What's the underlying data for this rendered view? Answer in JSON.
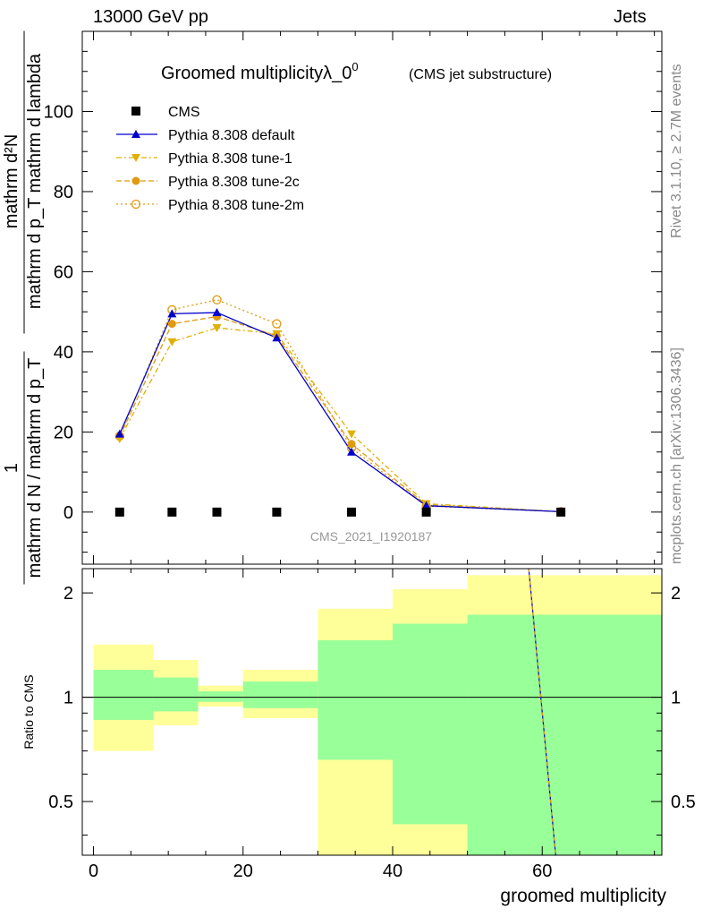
{
  "header": {
    "left": "13000 GeV pp",
    "right": "Jets"
  },
  "side_labels": {
    "top": "Rivet 3.1.10, ≥ 2.7M events",
    "bottom": "mcplots.cern.ch [arXiv:1306.3436]"
  },
  "chart_data": {
    "type": "line",
    "title": "Groomed multiplicityλ_0",
    "title_sup": "0",
    "subtitle": "(CMS jet substructure)",
    "watermark": "CMS_2021_I1920187",
    "xlabel": "groomed multiplicity",
    "ylabel_top": {
      "numerator": "mathrm d²N",
      "denominator": "mathrm d p_T mathrm d lambda",
      "pre": "1",
      "pre_den": "mathrm d N / mathrm d p_T"
    },
    "ylabel_ratio": "Ratio to CMS",
    "xlim": [
      -1.5,
      76
    ],
    "ylim": [
      -13,
      120
    ],
    "ratio_ylim": [
      0.35,
      2.35
    ],
    "ratio_scale": "log",
    "xticks": [
      0,
      20,
      40,
      60
    ],
    "yticks": [
      0,
      20,
      40,
      60,
      80,
      100
    ],
    "ratio_yticks": [
      0.5,
      1,
      2
    ],
    "ratio_ytick_labels": [
      "0.5",
      "1",
      "2"
    ],
    "legend_position": "top-left",
    "x": [
      3.5,
      10.5,
      16.5,
      24.5,
      34.5,
      44.5,
      62.5
    ],
    "bin_edges": [
      0,
      8,
      14,
      20,
      30,
      40,
      50,
      76
    ],
    "series": [
      {
        "name": "CMS",
        "values": [
          0,
          0,
          0,
          0,
          0,
          0,
          0
        ],
        "color": "#000000",
        "marker": "square",
        "line": "none"
      },
      {
        "name": "Pythia 8.308 default",
        "values": [
          19.5,
          49.5,
          49.8,
          43.5,
          15.0,
          1.6,
          0.1
        ],
        "color": "#0000cc",
        "marker": "triangle-up",
        "line": "solid"
      },
      {
        "name": "Pythia 8.308 tune-1",
        "values": [
          18.3,
          42.5,
          46.0,
          44.5,
          19.5,
          2.1,
          0.1
        ],
        "color": "#e0b000",
        "marker": "triangle-down",
        "line": "dashdot"
      },
      {
        "name": "Pythia 8.308 tune-2c",
        "values": [
          18.8,
          47.0,
          48.8,
          44.0,
          17.0,
          1.8,
          0.1
        ],
        "color": "#e09a10",
        "marker": "circle",
        "line": "dashed"
      },
      {
        "name": "Pythia 8.308 tune-2m",
        "values": [
          19.0,
          50.5,
          53.0,
          47.0,
          16.0,
          1.5,
          0.1
        ],
        "color": "#e09a10",
        "marker": "circle-open",
        "line": "dotted"
      }
    ],
    "ratio_bands": [
      {
        "x0": 0,
        "x1": 8,
        "yellow": [
          0.7,
          1.42
        ],
        "green": [
          0.86,
          1.2
        ]
      },
      {
        "x0": 8,
        "x1": 14,
        "yellow": [
          0.83,
          1.28
        ],
        "green": [
          0.91,
          1.14
        ]
      },
      {
        "x0": 14,
        "x1": 20,
        "yellow": [
          0.94,
          1.08
        ],
        "green": [
          0.97,
          1.04
        ]
      },
      {
        "x0": 20,
        "x1": 30,
        "yellow": [
          0.87,
          1.2
        ],
        "green": [
          0.93,
          1.11
        ]
      },
      {
        "x0": 30,
        "x1": 40,
        "yellow": [
          0.3,
          1.8
        ],
        "green": [
          0.66,
          1.46
        ]
      },
      {
        "x0": 40,
        "x1": 50,
        "yellow": [
          0.3,
          2.05
        ],
        "green": [
          0.43,
          1.63
        ]
      },
      {
        "x0": 50,
        "x1": 76,
        "yellow": [
          0.3,
          2.25
        ],
        "green": [
          0.3,
          1.73
        ]
      }
    ],
    "ratio_line": {
      "x": [
        58.2,
        61.8
      ],
      "y": [
        2.35,
        0.35
      ]
    },
    "colors": {
      "yellow_band": "#ffff99",
      "green_band": "#99ff99"
    }
  }
}
